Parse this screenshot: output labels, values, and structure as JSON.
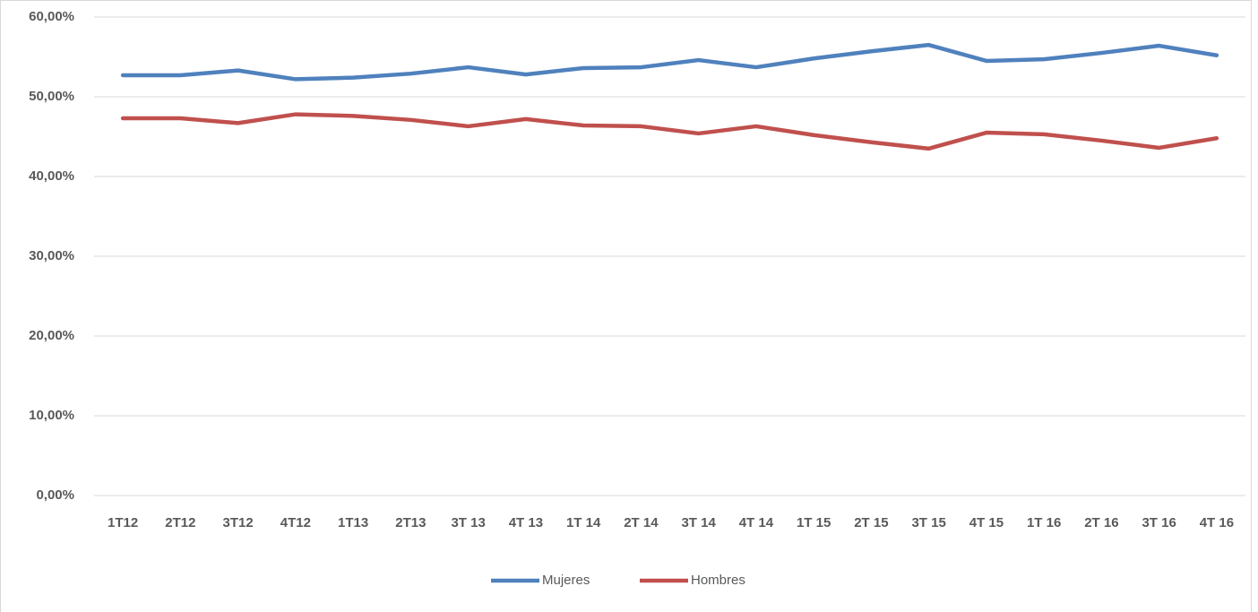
{
  "chart_data": {
    "type": "line",
    "categories": [
      "1T12",
      "2T12",
      "3T12",
      "4T12",
      "1T13",
      "2T13",
      "3T 13",
      "4T 13",
      "1T 14",
      "2T 14",
      "3T 14",
      "4T 14",
      "1T 15",
      "2T 15",
      "3T 15",
      "4T 15",
      "1T 16",
      "2T 16",
      "3T  16",
      "4T 16"
    ],
    "series": [
      {
        "name": "Mujeres",
        "color": "#4f81bd",
        "values": [
          52.7,
          52.7,
          53.3,
          52.2,
          52.4,
          52.9,
          53.7,
          52.8,
          53.6,
          53.7,
          54.6,
          53.7,
          54.8,
          55.7,
          56.5,
          54.5,
          54.7,
          55.5,
          56.4,
          55.2
        ]
      },
      {
        "name": "Hombres",
        "color": "#c0504d",
        "values": [
          47.3,
          47.3,
          46.7,
          47.8,
          47.6,
          47.1,
          46.3,
          47.2,
          46.4,
          46.3,
          45.4,
          46.3,
          45.2,
          44.3,
          43.5,
          45.5,
          45.3,
          44.5,
          43.6,
          44.8
        ]
      }
    ],
    "ylim": [
      0,
      60
    ],
    "yticks": [
      {
        "value": 0,
        "label": "0,00%"
      },
      {
        "value": 10,
        "label": "10,00%"
      },
      {
        "value": 20,
        "label": "20,00%"
      },
      {
        "value": 30,
        "label": "30,00%"
      },
      {
        "value": 40,
        "label": "40,00%"
      },
      {
        "value": 50,
        "label": "50,00%"
      },
      {
        "value": 60,
        "label": "60,00%"
      }
    ],
    "grid": true,
    "legend": "bottom"
  }
}
